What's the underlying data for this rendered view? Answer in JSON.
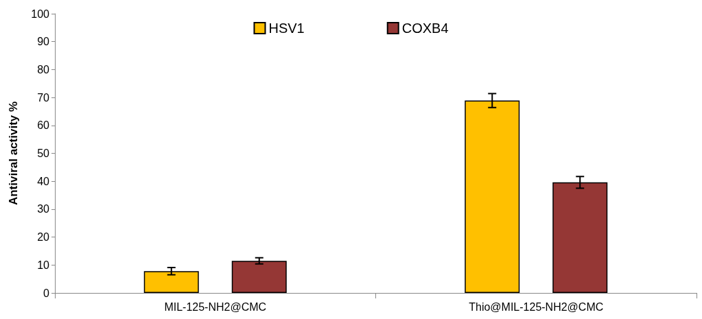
{
  "chart_data": {
    "type": "bar",
    "ylabel": "Antiviral activity %",
    "categories": [
      "MIL-125-NH2@CMC",
      "Thio@MIL-125-NH2@CMC"
    ],
    "series": [
      {
        "name": "HSV1",
        "color": "#ffc000",
        "values": [
          7.8,
          68.9
        ],
        "errors": [
          1.3,
          2.5
        ]
      },
      {
        "name": "COXB4",
        "color": "#953735",
        "values": [
          11.5,
          39.6
        ],
        "errors": [
          1.1,
          2.1
        ]
      }
    ],
    "ylim": [
      0,
      100
    ],
    "yticks": [
      0,
      10,
      20,
      30,
      40,
      50,
      60,
      70,
      80,
      90,
      100
    ],
    "grid": false,
    "legend": "top"
  }
}
